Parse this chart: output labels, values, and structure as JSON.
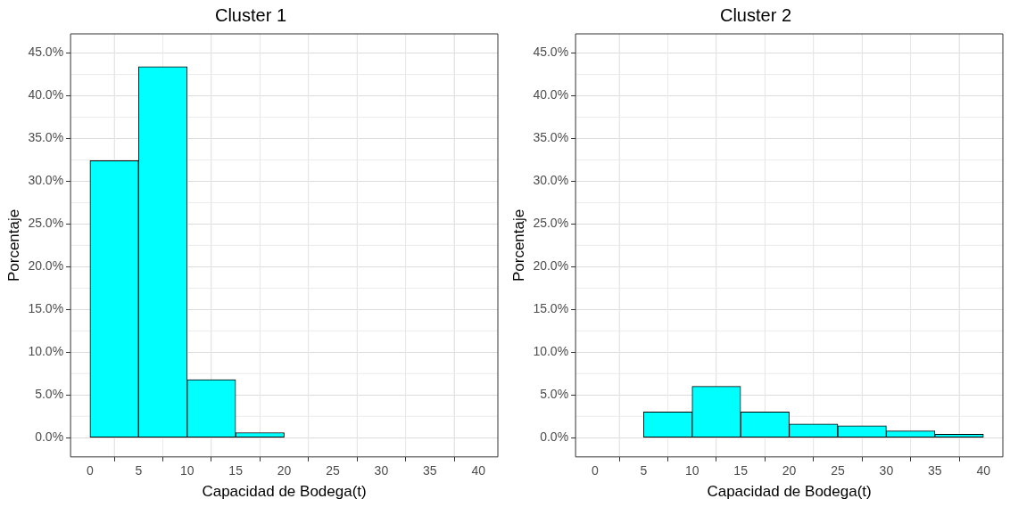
{
  "chart_data": [
    {
      "type": "histogram",
      "title": "Cluster 1",
      "xlabel": "Capacidad de Bodega(t)",
      "ylabel": "Porcentaje",
      "bins": [
        0,
        5,
        10,
        15,
        20,
        25,
        30,
        35,
        40
      ],
      "values": [
        32.4,
        43.4,
        6.8,
        0.6,
        0,
        0,
        0,
        0
      ],
      "color": "#00ffff",
      "xlim": [
        -2,
        42
      ],
      "xticks": [
        0,
        {
          "value": 2.5,
          "label": null
        },
        5,
        {
          "value": 7.5,
          "label": null
        },
        10,
        {
          "value": 12.5,
          "label": null
        },
        15,
        {
          "value": 17.5,
          "label": null
        },
        20,
        {
          "value": 22.5,
          "label": null
        },
        25,
        {
          "value": 27.5,
          "label": null
        },
        30,
        {
          "value": 32.5,
          "label": null
        },
        35,
        {
          "value": 37.5,
          "label": null
        },
        40
      ],
      "ylim": [
        -2.25,
        47.25
      ],
      "yticks": [
        {
          "value": 0,
          "label": "0.0%"
        },
        {
          "value": 2.5,
          "label": null
        },
        {
          "value": 5,
          "label": "5.0%"
        },
        {
          "value": 7.5,
          "label": null
        },
        {
          "value": 10,
          "label": "10.0%"
        },
        {
          "value": 12.5,
          "label": null
        },
        {
          "value": 15,
          "label": "15.0%"
        },
        {
          "value": 17.5,
          "label": null
        },
        {
          "value": 20,
          "label": "20.0%"
        },
        {
          "value": 22.5,
          "label": null
        },
        {
          "value": 25,
          "label": "25.0%"
        },
        {
          "value": 27.5,
          "label": null
        },
        {
          "value": 30,
          "label": "30.0%"
        },
        {
          "value": 32.5,
          "label": null
        },
        {
          "value": 35,
          "label": "35.0%"
        },
        {
          "value": 37.5,
          "label": null
        },
        {
          "value": 40,
          "label": "40.0%"
        },
        {
          "value": 42.5,
          "label": null
        },
        {
          "value": 45,
          "label": "45.0%"
        }
      ],
      "grid": true
    },
    {
      "type": "histogram",
      "title": "Cluster 2",
      "xlabel": "Capacidad de Bodega(t)",
      "ylabel": "Porcentaje",
      "bins": [
        0,
        5,
        10,
        15,
        20,
        25,
        30,
        35,
        40
      ],
      "values": [
        0,
        3.0,
        6.0,
        3.0,
        1.6,
        1.4,
        0.8,
        0.4
      ],
      "color": "#00ffff",
      "xlim": [
        -2,
        42
      ],
      "xticks": [
        0,
        {
          "value": 2.5,
          "label": null
        },
        5,
        {
          "value": 7.5,
          "label": null
        },
        10,
        {
          "value": 12.5,
          "label": null
        },
        15,
        {
          "value": 17.5,
          "label": null
        },
        20,
        {
          "value": 22.5,
          "label": null
        },
        25,
        {
          "value": 27.5,
          "label": null
        },
        30,
        {
          "value": 32.5,
          "label": null
        },
        35,
        {
          "value": 37.5,
          "label": null
        },
        40
      ],
      "ylim": [
        -2.25,
        47.25
      ],
      "yticks": [
        {
          "value": 0,
          "label": "0.0%"
        },
        {
          "value": 2.5,
          "label": null
        },
        {
          "value": 5,
          "label": "5.0%"
        },
        {
          "value": 7.5,
          "label": null
        },
        {
          "value": 10,
          "label": "10.0%"
        },
        {
          "value": 12.5,
          "label": null
        },
        {
          "value": 15,
          "label": "15.0%"
        },
        {
          "value": 17.5,
          "label": null
        },
        {
          "value": 20,
          "label": "20.0%"
        },
        {
          "value": 22.5,
          "label": null
        },
        {
          "value": 25,
          "label": "25.0%"
        },
        {
          "value": 27.5,
          "label": null
        },
        {
          "value": 30,
          "label": "30.0%"
        },
        {
          "value": 32.5,
          "label": null
        },
        {
          "value": 35,
          "label": "35.0%"
        },
        {
          "value": 37.5,
          "label": null
        },
        {
          "value": 40,
          "label": "40.0%"
        },
        {
          "value": 42.5,
          "label": null
        },
        {
          "value": 45,
          "label": "45.0%"
        }
      ],
      "grid": true
    }
  ]
}
